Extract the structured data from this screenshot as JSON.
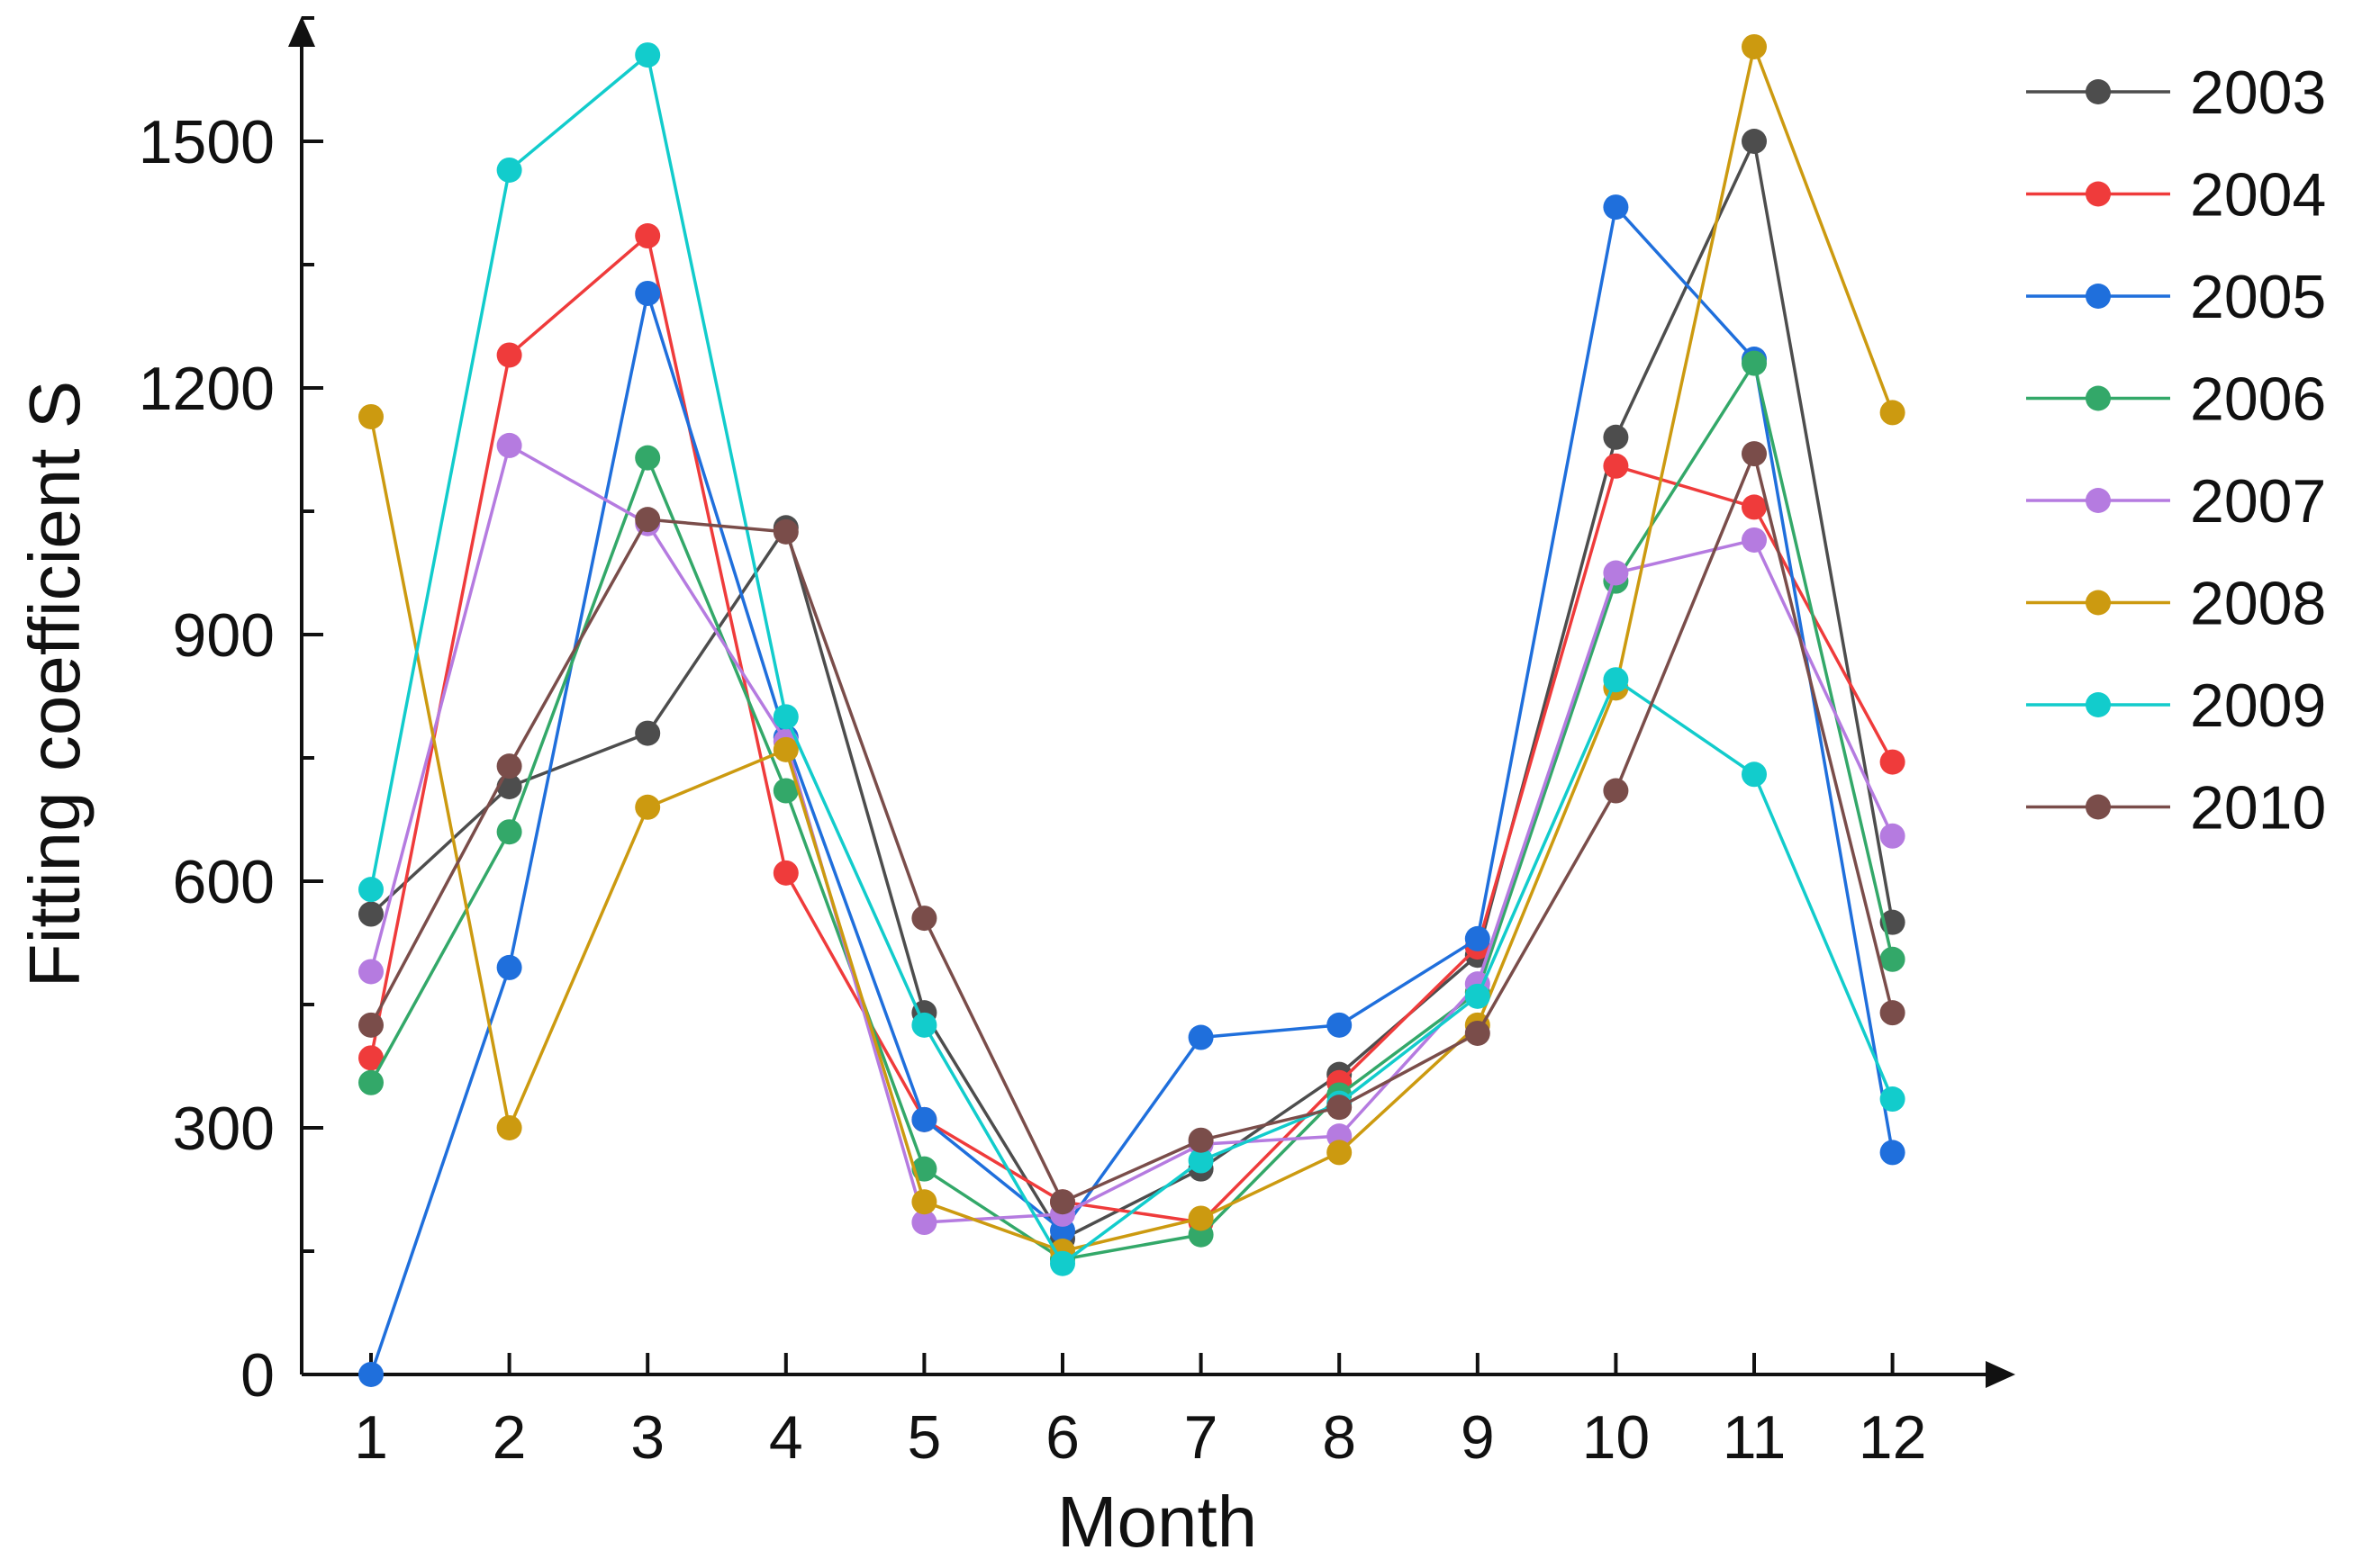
{
  "chart_data": {
    "type": "line",
    "title": "",
    "xlabel": "Month",
    "ylabel": "Fitting coefficient S",
    "x": [
      1,
      2,
      3,
      4,
      5,
      6,
      7,
      8,
      9,
      10,
      11,
      12
    ],
    "x_tick_labels": [
      "1",
      "2",
      "3",
      "4",
      "5",
      "6",
      "7",
      "8",
      "9",
      "10",
      "11",
      "12"
    ],
    "ylim": [
      0,
      1650
    ],
    "y_ticks": [
      0,
      300,
      600,
      900,
      1200,
      1500
    ],
    "y_tick_labels": [
      "0",
      "300",
      "600",
      "900",
      "1200",
      "1500"
    ],
    "grid": false,
    "legend_position": "right",
    "series": [
      {
        "name": "2003",
        "color": "#4d4d4d",
        "values": [
          560,
          715,
          780,
          1030,
          440,
          165,
          250,
          365,
          510,
          1140,
          1500,
          550
        ]
      },
      {
        "name": "2004",
        "color": "#ef3b3b",
        "values": [
          385,
          1240,
          1385,
          610,
          310,
          210,
          185,
          355,
          520,
          1105,
          1055,
          745
        ]
      },
      {
        "name": "2005",
        "color": "#1f6fdc",
        "values": [
          0,
          495,
          1315,
          775,
          310,
          175,
          410,
          425,
          530,
          1420,
          1235,
          270
        ]
      },
      {
        "name": "2006",
        "color": "#33a869",
        "values": [
          355,
          660,
          1115,
          710,
          250,
          140,
          170,
          340,
          465,
          965,
          1230,
          505
        ]
      },
      {
        "name": "2007",
        "color": "#b57be0",
        "values": [
          490,
          1130,
          1035,
          770,
          185,
          195,
          280,
          290,
          475,
          975,
          1015,
          655
        ]
      },
      {
        "name": "2008",
        "color": "#cc9a10",
        "values": [
          1165,
          300,
          690,
          760,
          210,
          150,
          190,
          270,
          425,
          835,
          1615,
          1170
        ]
      },
      {
        "name": "2009",
        "color": "#12cccc",
        "values": [
          590,
          1465,
          1605,
          800,
          425,
          135,
          260,
          330,
          460,
          845,
          730,
          335
        ]
      },
      {
        "name": "2010",
        "color": "#7a4d4a",
        "values": [
          425,
          740,
          1040,
          1025,
          555,
          210,
          285,
          325,
          415,
          710,
          1120,
          440
        ]
      }
    ]
  }
}
